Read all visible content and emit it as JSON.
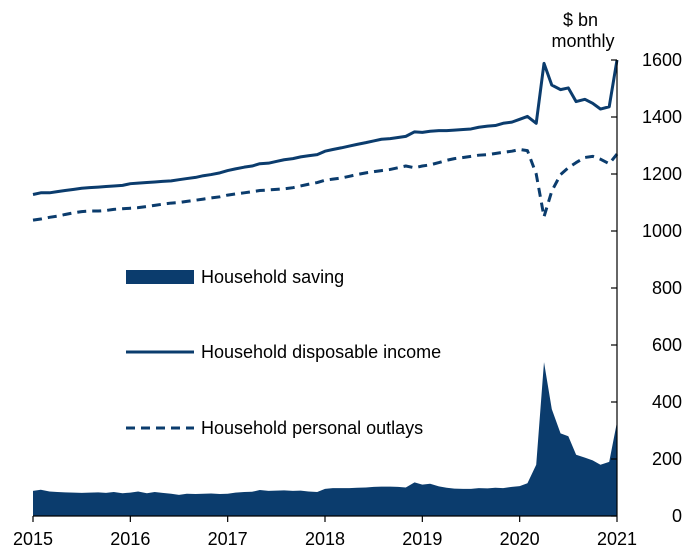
{
  "chart_data": {
    "type": "line",
    "title": "",
    "unit_label": "$ bn monthly",
    "unit_label_lines": [
      "$ bn",
      "monthly"
    ],
    "xlabel": "",
    "ylabel": "",
    "x_ticks": [
      "2015",
      "2016",
      "2017",
      "2018",
      "2019",
      "2020",
      "2021"
    ],
    "y_ticks": [
      "0",
      "200",
      "400",
      "600",
      "800",
      "1000",
      "1200",
      "1400",
      "1600"
    ],
    "xlim": [
      2015,
      2021
    ],
    "ylim": [
      0,
      1600
    ],
    "y_axis_position": "right",
    "grid": false,
    "legend_position": "center-left",
    "colors": {
      "series": "#0b3c6d",
      "axis": "#000000"
    },
    "series": [
      {
        "name": "Household saving",
        "style": "area",
        "points": [
          [
            2015.0,
            88
          ],
          [
            2015.08,
            92
          ],
          [
            2015.17,
            86
          ],
          [
            2015.25,
            84
          ],
          [
            2015.33,
            83
          ],
          [
            2015.42,
            82
          ],
          [
            2015.5,
            81
          ],
          [
            2015.58,
            82
          ],
          [
            2015.67,
            83
          ],
          [
            2015.75,
            81
          ],
          [
            2015.83,
            84
          ],
          [
            2015.92,
            80
          ],
          [
            2016.0,
            82
          ],
          [
            2016.08,
            86
          ],
          [
            2016.17,
            80
          ],
          [
            2016.25,
            84
          ],
          [
            2016.33,
            81
          ],
          [
            2016.42,
            78
          ],
          [
            2016.5,
            74
          ],
          [
            2016.58,
            78
          ],
          [
            2016.67,
            77
          ],
          [
            2016.75,
            78
          ],
          [
            2016.83,
            79
          ],
          [
            2016.92,
            77
          ],
          [
            2017.0,
            78
          ],
          [
            2017.08,
            82
          ],
          [
            2017.17,
            84
          ],
          [
            2017.25,
            85
          ],
          [
            2017.33,
            91
          ],
          [
            2017.42,
            88
          ],
          [
            2017.5,
            89
          ],
          [
            2017.58,
            90
          ],
          [
            2017.67,
            88
          ],
          [
            2017.75,
            89
          ],
          [
            2017.83,
            86
          ],
          [
            2017.92,
            84
          ],
          [
            2018.0,
            95
          ],
          [
            2018.08,
            98
          ],
          [
            2018.17,
            98
          ],
          [
            2018.25,
            98
          ],
          [
            2018.33,
            99
          ],
          [
            2018.42,
            100
          ],
          [
            2018.5,
            102
          ],
          [
            2018.58,
            103
          ],
          [
            2018.67,
            103
          ],
          [
            2018.75,
            102
          ],
          [
            2018.83,
            100
          ],
          [
            2018.92,
            118
          ],
          [
            2019.0,
            110
          ],
          [
            2019.08,
            113
          ],
          [
            2019.17,
            104
          ],
          [
            2019.25,
            99
          ],
          [
            2019.33,
            96
          ],
          [
            2019.42,
            95
          ],
          [
            2019.5,
            95
          ],
          [
            2019.58,
            98
          ],
          [
            2019.67,
            97
          ],
          [
            2019.75,
            99
          ],
          [
            2019.83,
            98
          ],
          [
            2019.92,
            102
          ],
          [
            2020.0,
            105
          ],
          [
            2020.08,
            115
          ],
          [
            2020.17,
            180
          ],
          [
            2020.25,
            540
          ],
          [
            2020.33,
            375
          ],
          [
            2020.42,
            290
          ],
          [
            2020.5,
            280
          ],
          [
            2020.58,
            215
          ],
          [
            2020.67,
            205
          ],
          [
            2020.75,
            195
          ],
          [
            2020.83,
            180
          ],
          [
            2020.92,
            190
          ],
          [
            2021.0,
            330
          ]
        ]
      },
      {
        "name": "Household disposable income",
        "style": "solid",
        "points": [
          [
            2015.0,
            1128
          ],
          [
            2015.08,
            1134
          ],
          [
            2015.17,
            1134
          ],
          [
            2015.25,
            1138
          ],
          [
            2015.33,
            1142
          ],
          [
            2015.42,
            1146
          ],
          [
            2015.5,
            1150
          ],
          [
            2015.58,
            1152
          ],
          [
            2015.67,
            1154
          ],
          [
            2015.75,
            1156
          ],
          [
            2015.83,
            1158
          ],
          [
            2015.92,
            1160
          ],
          [
            2016.0,
            1166
          ],
          [
            2016.08,
            1168
          ],
          [
            2016.17,
            1170
          ],
          [
            2016.25,
            1172
          ],
          [
            2016.33,
            1174
          ],
          [
            2016.42,
            1176
          ],
          [
            2016.5,
            1180
          ],
          [
            2016.58,
            1184
          ],
          [
            2016.67,
            1188
          ],
          [
            2016.75,
            1194
          ],
          [
            2016.83,
            1198
          ],
          [
            2016.92,
            1204
          ],
          [
            2017.0,
            1212
          ],
          [
            2017.08,
            1218
          ],
          [
            2017.17,
            1224
          ],
          [
            2017.25,
            1228
          ],
          [
            2017.33,
            1236
          ],
          [
            2017.42,
            1238
          ],
          [
            2017.5,
            1244
          ],
          [
            2017.58,
            1250
          ],
          [
            2017.67,
            1254
          ],
          [
            2017.75,
            1260
          ],
          [
            2017.83,
            1264
          ],
          [
            2017.92,
            1268
          ],
          [
            2018.0,
            1280
          ],
          [
            2018.08,
            1286
          ],
          [
            2018.17,
            1292
          ],
          [
            2018.25,
            1298
          ],
          [
            2018.33,
            1304
          ],
          [
            2018.42,
            1310
          ],
          [
            2018.5,
            1316
          ],
          [
            2018.58,
            1322
          ],
          [
            2018.67,
            1324
          ],
          [
            2018.75,
            1328
          ],
          [
            2018.83,
            1332
          ],
          [
            2018.92,
            1348
          ],
          [
            2019.0,
            1346
          ],
          [
            2019.08,
            1350
          ],
          [
            2019.17,
            1352
          ],
          [
            2019.25,
            1352
          ],
          [
            2019.33,
            1354
          ],
          [
            2019.42,
            1356
          ],
          [
            2019.5,
            1358
          ],
          [
            2019.58,
            1364
          ],
          [
            2019.67,
            1368
          ],
          [
            2019.75,
            1370
          ],
          [
            2019.83,
            1378
          ],
          [
            2019.92,
            1382
          ],
          [
            2020.0,
            1392
          ],
          [
            2020.08,
            1402
          ],
          [
            2020.17,
            1378
          ],
          [
            2020.25,
            1588
          ],
          [
            2020.33,
            1512
          ],
          [
            2020.42,
            1496
          ],
          [
            2020.5,
            1502
          ],
          [
            2020.58,
            1454
          ],
          [
            2020.67,
            1462
          ],
          [
            2020.75,
            1448
          ],
          [
            2020.83,
            1428
          ],
          [
            2020.92,
            1436
          ],
          [
            2021.0,
            1600
          ]
        ]
      },
      {
        "name": "Household personal outlays",
        "style": "dashed",
        "points": [
          [
            2015.0,
            1038
          ],
          [
            2015.08,
            1042
          ],
          [
            2015.17,
            1048
          ],
          [
            2015.25,
            1052
          ],
          [
            2015.33,
            1058
          ],
          [
            2015.42,
            1064
          ],
          [
            2015.5,
            1068
          ],
          [
            2015.58,
            1070
          ],
          [
            2015.67,
            1070
          ],
          [
            2015.75,
            1072
          ],
          [
            2015.83,
            1076
          ],
          [
            2015.92,
            1078
          ],
          [
            2016.0,
            1080
          ],
          [
            2016.08,
            1082
          ],
          [
            2016.17,
            1086
          ],
          [
            2016.25,
            1090
          ],
          [
            2016.33,
            1094
          ],
          [
            2016.42,
            1098
          ],
          [
            2016.5,
            1100
          ],
          [
            2016.58,
            1104
          ],
          [
            2016.67,
            1108
          ],
          [
            2016.75,
            1112
          ],
          [
            2016.83,
            1116
          ],
          [
            2016.92,
            1120
          ],
          [
            2017.0,
            1126
          ],
          [
            2017.08,
            1130
          ],
          [
            2017.17,
            1134
          ],
          [
            2017.25,
            1138
          ],
          [
            2017.33,
            1142
          ],
          [
            2017.42,
            1144
          ],
          [
            2017.5,
            1146
          ],
          [
            2017.58,
            1148
          ],
          [
            2017.67,
            1152
          ],
          [
            2017.75,
            1158
          ],
          [
            2017.83,
            1164
          ],
          [
            2017.92,
            1170
          ],
          [
            2018.0,
            1178
          ],
          [
            2018.08,
            1182
          ],
          [
            2018.17,
            1186
          ],
          [
            2018.25,
            1192
          ],
          [
            2018.33,
            1198
          ],
          [
            2018.42,
            1204
          ],
          [
            2018.5,
            1208
          ],
          [
            2018.58,
            1212
          ],
          [
            2018.67,
            1216
          ],
          [
            2018.75,
            1222
          ],
          [
            2018.83,
            1228
          ],
          [
            2018.92,
            1222
          ],
          [
            2019.0,
            1228
          ],
          [
            2019.08,
            1232
          ],
          [
            2019.17,
            1240
          ],
          [
            2019.25,
            1248
          ],
          [
            2019.33,
            1254
          ],
          [
            2019.42,
            1258
          ],
          [
            2019.5,
            1262
          ],
          [
            2019.58,
            1266
          ],
          [
            2019.67,
            1268
          ],
          [
            2019.75,
            1272
          ],
          [
            2019.83,
            1276
          ],
          [
            2019.92,
            1280
          ],
          [
            2020.0,
            1286
          ],
          [
            2020.08,
            1282
          ],
          [
            2020.17,
            1200
          ],
          [
            2020.25,
            1050
          ],
          [
            2020.33,
            1140
          ],
          [
            2020.42,
            1198
          ],
          [
            2020.5,
            1222
          ],
          [
            2020.58,
            1240
          ],
          [
            2020.67,
            1258
          ],
          [
            2020.75,
            1262
          ],
          [
            2020.83,
            1252
          ],
          [
            2020.92,
            1236
          ],
          [
            2021.0,
            1270
          ]
        ]
      }
    ]
  }
}
